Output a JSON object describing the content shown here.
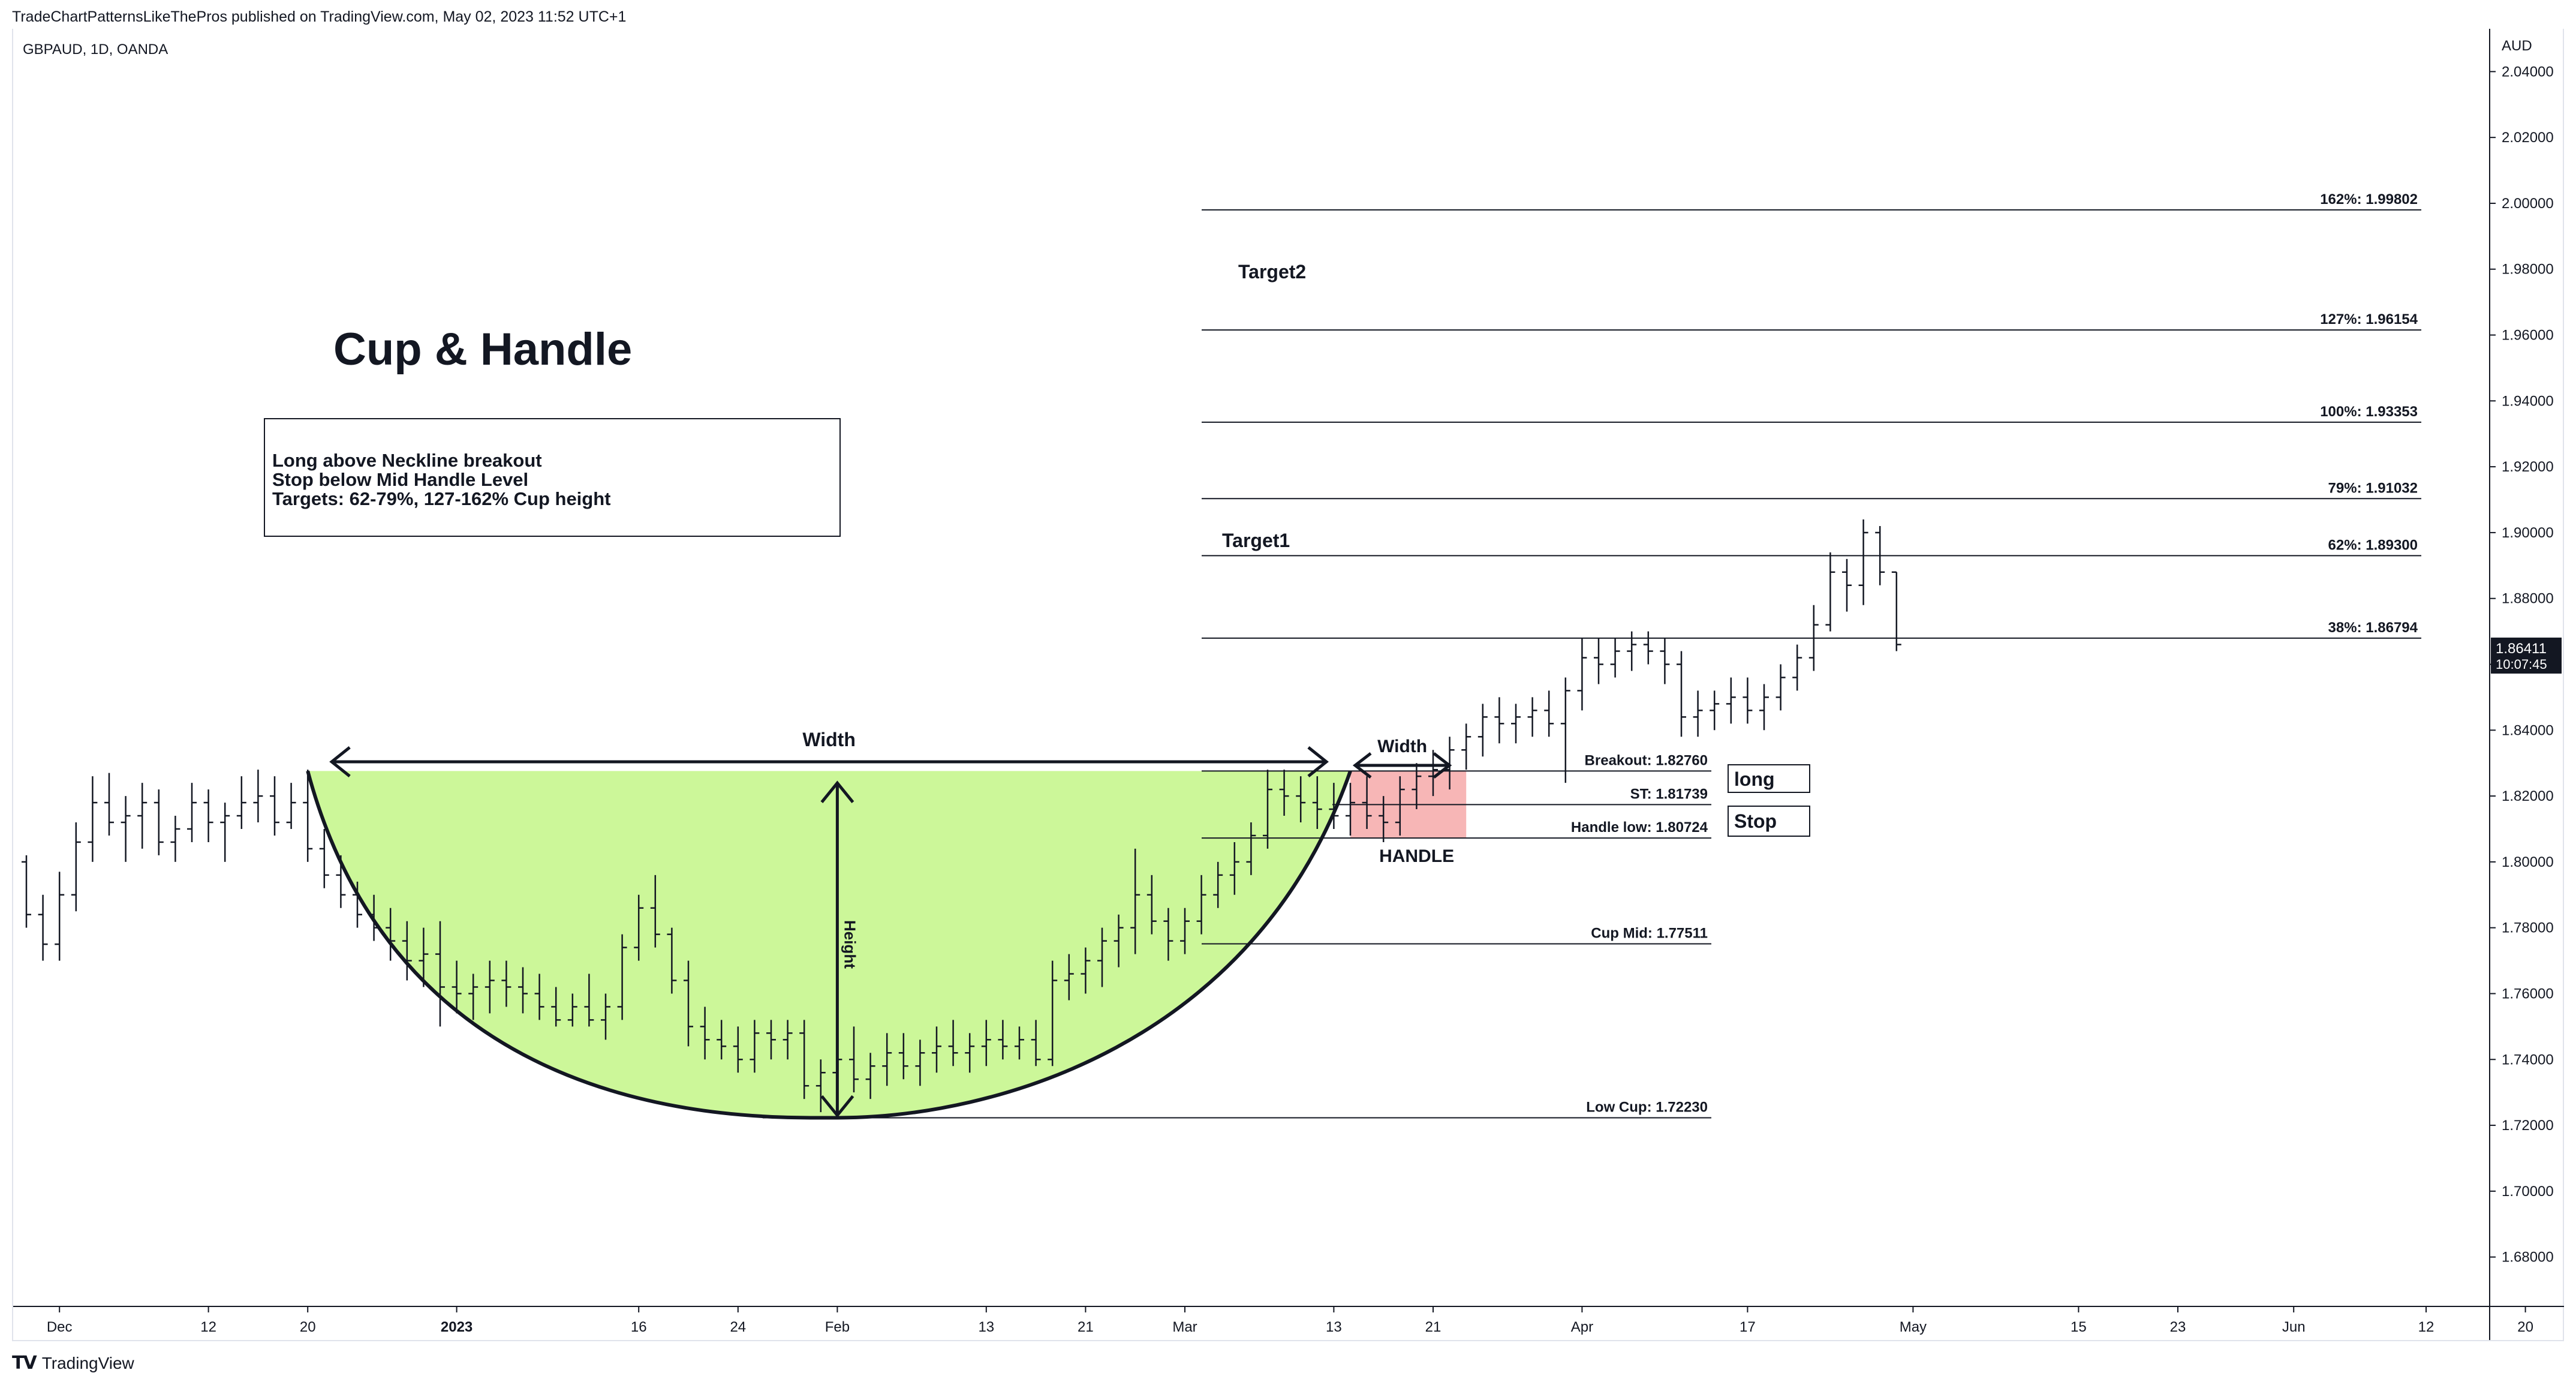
{
  "header": {
    "publish_info": "TradeChartPatternsLikeThePros published on TradingView.com, May 02, 2023 11:52 UTC+1"
  },
  "brand": {
    "name": "TradingView",
    "icon": "tradingview-logo-icon"
  },
  "colors": {
    "cup_fill": "#ccf799",
    "handle_fill": "#f7b6b6",
    "bars": "#131722",
    "price_tag_bg": "#131722",
    "price_tag_text": "#ffffff"
  },
  "chart_data": {
    "type": "ohlc",
    "symbol_label": "GBPAUD, 1D, OANDA",
    "currency": "AUD",
    "title": "Cup & Handle",
    "y_ticks": [
      2.04,
      2.02,
      2.0,
      1.98,
      1.96,
      1.94,
      1.92,
      1.9,
      1.88,
      1.86,
      1.84,
      1.82,
      1.8,
      1.78,
      1.76,
      1.74,
      1.72,
      1.7,
      1.68
    ],
    "y_tick_labels": [
      "2.04000",
      "2.02000",
      "2.00000",
      "1.98000",
      "1.96000",
      "1.94000",
      "1.92000",
      "1.90000",
      "1.88000",
      "1.86000",
      "1.84000",
      "1.82000",
      "1.80000",
      "1.78000",
      "1.76000",
      "1.74000",
      "1.72000",
      "1.70000",
      "1.68000"
    ],
    "ylim": [
      1.665,
      2.053
    ],
    "x_ticks": [
      {
        "label": "Dec",
        "bar": 2
      },
      {
        "label": "12",
        "bar": 11
      },
      {
        "label": "20",
        "bar": 17
      },
      {
        "label": "2023",
        "bar": 26,
        "bold": true
      },
      {
        "label": "16",
        "bar": 37
      },
      {
        "label": "24",
        "bar": 43
      },
      {
        "label": "Feb",
        "bar": 49
      },
      {
        "label": "13",
        "bar": 58
      },
      {
        "label": "21",
        "bar": 64
      },
      {
        "label": "Mar",
        "bar": 70
      },
      {
        "label": "13",
        "bar": 79
      },
      {
        "label": "21",
        "bar": 85
      },
      {
        "label": "Apr",
        "bar": 94
      },
      {
        "label": "17",
        "bar": 104
      },
      {
        "label": "May",
        "bar": 114
      },
      {
        "label": "15",
        "bar": 124
      },
      {
        "label": "23",
        "bar": 130
      },
      {
        "label": "Jun",
        "bar": 137
      },
      {
        "label": "12",
        "bar": 145
      },
      {
        "label": "20",
        "bar": 151
      }
    ],
    "last_price": "1.86411",
    "countdown": "10:07:45",
    "ohlc": [
      [
        1.8,
        1.802,
        1.78,
        1.784
      ],
      [
        1.784,
        1.79,
        1.77,
        1.775
      ],
      [
        1.775,
        1.797,
        1.77,
        1.79
      ],
      [
        1.79,
        1.812,
        1.785,
        1.806
      ],
      [
        1.806,
        1.826,
        1.8,
        1.818
      ],
      [
        1.818,
        1.827,
        1.808,
        1.812
      ],
      [
        1.812,
        1.82,
        1.8,
        1.814
      ],
      [
        1.814,
        1.824,
        1.804,
        1.818
      ],
      [
        1.818,
        1.822,
        1.802,
        1.806
      ],
      [
        1.806,
        1.814,
        1.8,
        1.81
      ],
      [
        1.81,
        1.824,
        1.806,
        1.818
      ],
      [
        1.818,
        1.822,
        1.806,
        1.812
      ],
      [
        1.812,
        1.818,
        1.8,
        1.814
      ],
      [
        1.814,
        1.826,
        1.81,
        1.818
      ],
      [
        1.818,
        1.828,
        1.812,
        1.82
      ],
      [
        1.82,
        1.826,
        1.808,
        1.812
      ],
      [
        1.812,
        1.824,
        1.81,
        1.818
      ],
      [
        1.818,
        1.828,
        1.8,
        1.804
      ],
      [
        1.804,
        1.81,
        1.792,
        1.796
      ],
      [
        1.796,
        1.802,
        1.786,
        1.79
      ],
      [
        1.79,
        1.794,
        1.78,
        1.784
      ],
      [
        1.784,
        1.79,
        1.776,
        1.78
      ],
      [
        1.78,
        1.786,
        1.77,
        1.776
      ],
      [
        1.776,
        1.782,
        1.764,
        1.77
      ],
      [
        1.77,
        1.78,
        1.762,
        1.772
      ],
      [
        1.772,
        1.782,
        1.75,
        1.762
      ],
      [
        1.762,
        1.77,
        1.754,
        1.76
      ],
      [
        1.76,
        1.766,
        1.752,
        1.762
      ],
      [
        1.762,
        1.77,
        1.754,
        1.764
      ],
      [
        1.764,
        1.77,
        1.756,
        1.762
      ],
      [
        1.762,
        1.768,
        1.754,
        1.76
      ],
      [
        1.76,
        1.766,
        1.752,
        1.756
      ],
      [
        1.756,
        1.762,
        1.75,
        1.752
      ],
      [
        1.752,
        1.76,
        1.75,
        1.756
      ],
      [
        1.756,
        1.766,
        1.75,
        1.752
      ],
      [
        1.752,
        1.76,
        1.746,
        1.756
      ],
      [
        1.756,
        1.778,
        1.752,
        1.774
      ],
      [
        1.774,
        1.79,
        1.77,
        1.786
      ],
      [
        1.786,
        1.796,
        1.774,
        1.778
      ],
      [
        1.778,
        1.78,
        1.76,
        1.764
      ],
      [
        1.764,
        1.77,
        1.744,
        1.75
      ],
      [
        1.75,
        1.756,
        1.74,
        1.746
      ],
      [
        1.746,
        1.752,
        1.74,
        1.744
      ],
      [
        1.744,
        1.75,
        1.736,
        1.74
      ],
      [
        1.74,
        1.752,
        1.736,
        1.748
      ],
      [
        1.748,
        1.752,
        1.74,
        1.746
      ],
      [
        1.746,
        1.752,
        1.74,
        1.748
      ],
      [
        1.748,
        1.752,
        1.728,
        1.732
      ],
      [
        1.732,
        1.74,
        1.724,
        1.736
      ],
      [
        1.736,
        1.746,
        1.728,
        1.74
      ],
      [
        1.74,
        1.75,
        1.73,
        1.734
      ],
      [
        1.734,
        1.742,
        1.728,
        1.738
      ],
      [
        1.738,
        1.748,
        1.732,
        1.742
      ],
      [
        1.742,
        1.748,
        1.734,
        1.738
      ],
      [
        1.738,
        1.746,
        1.732,
        1.742
      ],
      [
        1.742,
        1.75,
        1.736,
        1.744
      ],
      [
        1.744,
        1.752,
        1.738,
        1.742
      ],
      [
        1.742,
        1.748,
        1.736,
        1.744
      ],
      [
        1.744,
        1.752,
        1.738,
        1.746
      ],
      [
        1.746,
        1.752,
        1.74,
        1.744
      ],
      [
        1.744,
        1.75,
        1.74,
        1.746
      ],
      [
        1.746,
        1.752,
        1.738,
        1.74
      ],
      [
        1.74,
        1.77,
        1.738,
        1.764
      ],
      [
        1.764,
        1.772,
        1.758,
        1.766
      ],
      [
        1.766,
        1.774,
        1.76,
        1.77
      ],
      [
        1.77,
        1.78,
        1.762,
        1.776
      ],
      [
        1.776,
        1.784,
        1.768,
        1.78
      ],
      [
        1.78,
        1.804,
        1.772,
        1.79
      ],
      [
        1.79,
        1.796,
        1.778,
        1.782
      ],
      [
        1.782,
        1.786,
        1.77,
        1.776
      ],
      [
        1.776,
        1.786,
        1.772,
        1.782
      ],
      [
        1.782,
        1.796,
        1.778,
        1.79
      ],
      [
        1.79,
        1.8,
        1.786,
        1.796
      ],
      [
        1.796,
        1.806,
        1.79,
        1.8
      ],
      [
        1.8,
        1.812,
        1.796,
        1.808
      ],
      [
        1.808,
        1.828,
        1.804,
        1.822
      ],
      [
        1.822,
        1.828,
        1.814,
        1.82
      ],
      [
        1.82,
        1.826,
        1.812,
        1.818
      ],
      [
        1.818,
        1.826,
        1.81,
        1.816
      ],
      [
        1.816,
        1.824,
        1.81,
        1.814
      ],
      [
        1.814,
        1.824,
        1.808,
        1.818
      ],
      [
        1.818,
        1.826,
        1.81,
        1.814
      ],
      [
        1.814,
        1.82,
        1.806,
        1.812
      ],
      [
        1.812,
        1.826,
        1.808,
        1.822
      ],
      [
        1.822,
        1.83,
        1.816,
        1.826
      ],
      [
        1.826,
        1.834,
        1.82,
        1.828
      ],
      [
        1.828,
        1.838,
        1.822,
        1.834
      ],
      [
        1.834,
        1.842,
        1.828,
        1.838
      ],
      [
        1.838,
        1.848,
        1.832,
        1.844
      ],
      [
        1.844,
        1.85,
        1.836,
        1.842
      ],
      [
        1.842,
        1.848,
        1.836,
        1.844
      ],
      [
        1.844,
        1.85,
        1.838,
        1.846
      ],
      [
        1.846,
        1.852,
        1.838,
        1.842
      ],
      [
        1.842,
        1.856,
        1.824,
        1.852
      ],
      [
        1.852,
        1.868,
        1.846,
        1.862
      ],
      [
        1.862,
        1.868,
        1.854,
        1.86
      ],
      [
        1.86,
        1.868,
        1.856,
        1.864
      ],
      [
        1.864,
        1.87,
        1.858,
        1.866
      ],
      [
        1.866,
        1.87,
        1.86,
        1.864
      ],
      [
        1.864,
        1.868,
        1.854,
        1.86
      ],
      [
        1.86,
        1.864,
        1.838,
        1.844
      ],
      [
        1.844,
        1.852,
        1.838,
        1.846
      ],
      [
        1.846,
        1.852,
        1.84,
        1.848
      ],
      [
        1.848,
        1.856,
        1.842,
        1.85
      ],
      [
        1.85,
        1.856,
        1.842,
        1.846
      ],
      [
        1.846,
        1.854,
        1.84,
        1.85
      ],
      [
        1.85,
        1.86,
        1.846,
        1.856
      ],
      [
        1.856,
        1.866,
        1.852,
        1.862
      ],
      [
        1.862,
        1.878,
        1.858,
        1.872
      ],
      [
        1.872,
        1.894,
        1.87,
        1.888
      ],
      [
        1.888,
        1.892,
        1.876,
        1.884
      ],
      [
        1.884,
        1.904,
        1.878,
        1.9
      ],
      [
        1.9,
        1.902,
        1.884,
        1.888
      ],
      [
        1.888,
        1.888,
        1.864,
        1.866
      ]
    ],
    "cup": {
      "rim_start_bar": 17,
      "bottom_bar": 49,
      "rim_end_bar": 80,
      "rim_price": 1.8276,
      "low_price": 1.7223
    },
    "handle": {
      "start_bar": 80,
      "end_bar": 87,
      "top": 1.8276,
      "bottom": 1.80724
    },
    "levels": [
      {
        "label": "162%: 1.99802",
        "price": 1.99802,
        "kind": "fib"
      },
      {
        "label": "127%: 1.96154",
        "price": 1.96154,
        "kind": "fib"
      },
      {
        "label": "100%: 1.93353",
        "price": 1.93353,
        "kind": "fib"
      },
      {
        "label": "79%: 1.91032",
        "price": 1.91032,
        "kind": "fib"
      },
      {
        "label": "62%: 1.89300",
        "price": 1.893,
        "kind": "fib"
      },
      {
        "label": "38%: 1.86794",
        "price": 1.86794,
        "kind": "fib"
      },
      {
        "label": "Breakout: 1.82760",
        "price": 1.8276,
        "kind": "trade"
      },
      {
        "label": "ST: 1.81739",
        "price": 1.81739,
        "kind": "trade"
      },
      {
        "label": "Handle low: 1.80724",
        "price": 1.80724,
        "kind": "trade"
      },
      {
        "label": "Cup Mid: 1.77511",
        "price": 1.77511,
        "kind": "trade"
      },
      {
        "label": "Low Cup: 1.72230",
        "price": 1.7223,
        "kind": "low"
      }
    ],
    "annotations": {
      "target1": "Target1",
      "target2": "Target2",
      "width_cup": "Width",
      "width_handle": "Width",
      "height": "Height",
      "handle": "HANDLE",
      "long": "long",
      "stop": "Stop",
      "notes": [
        "Long above Neckline breakout",
        "Stop below Mid Handle Level",
        "Targets: 62-79%, 127-162% Cup height"
      ]
    }
  }
}
